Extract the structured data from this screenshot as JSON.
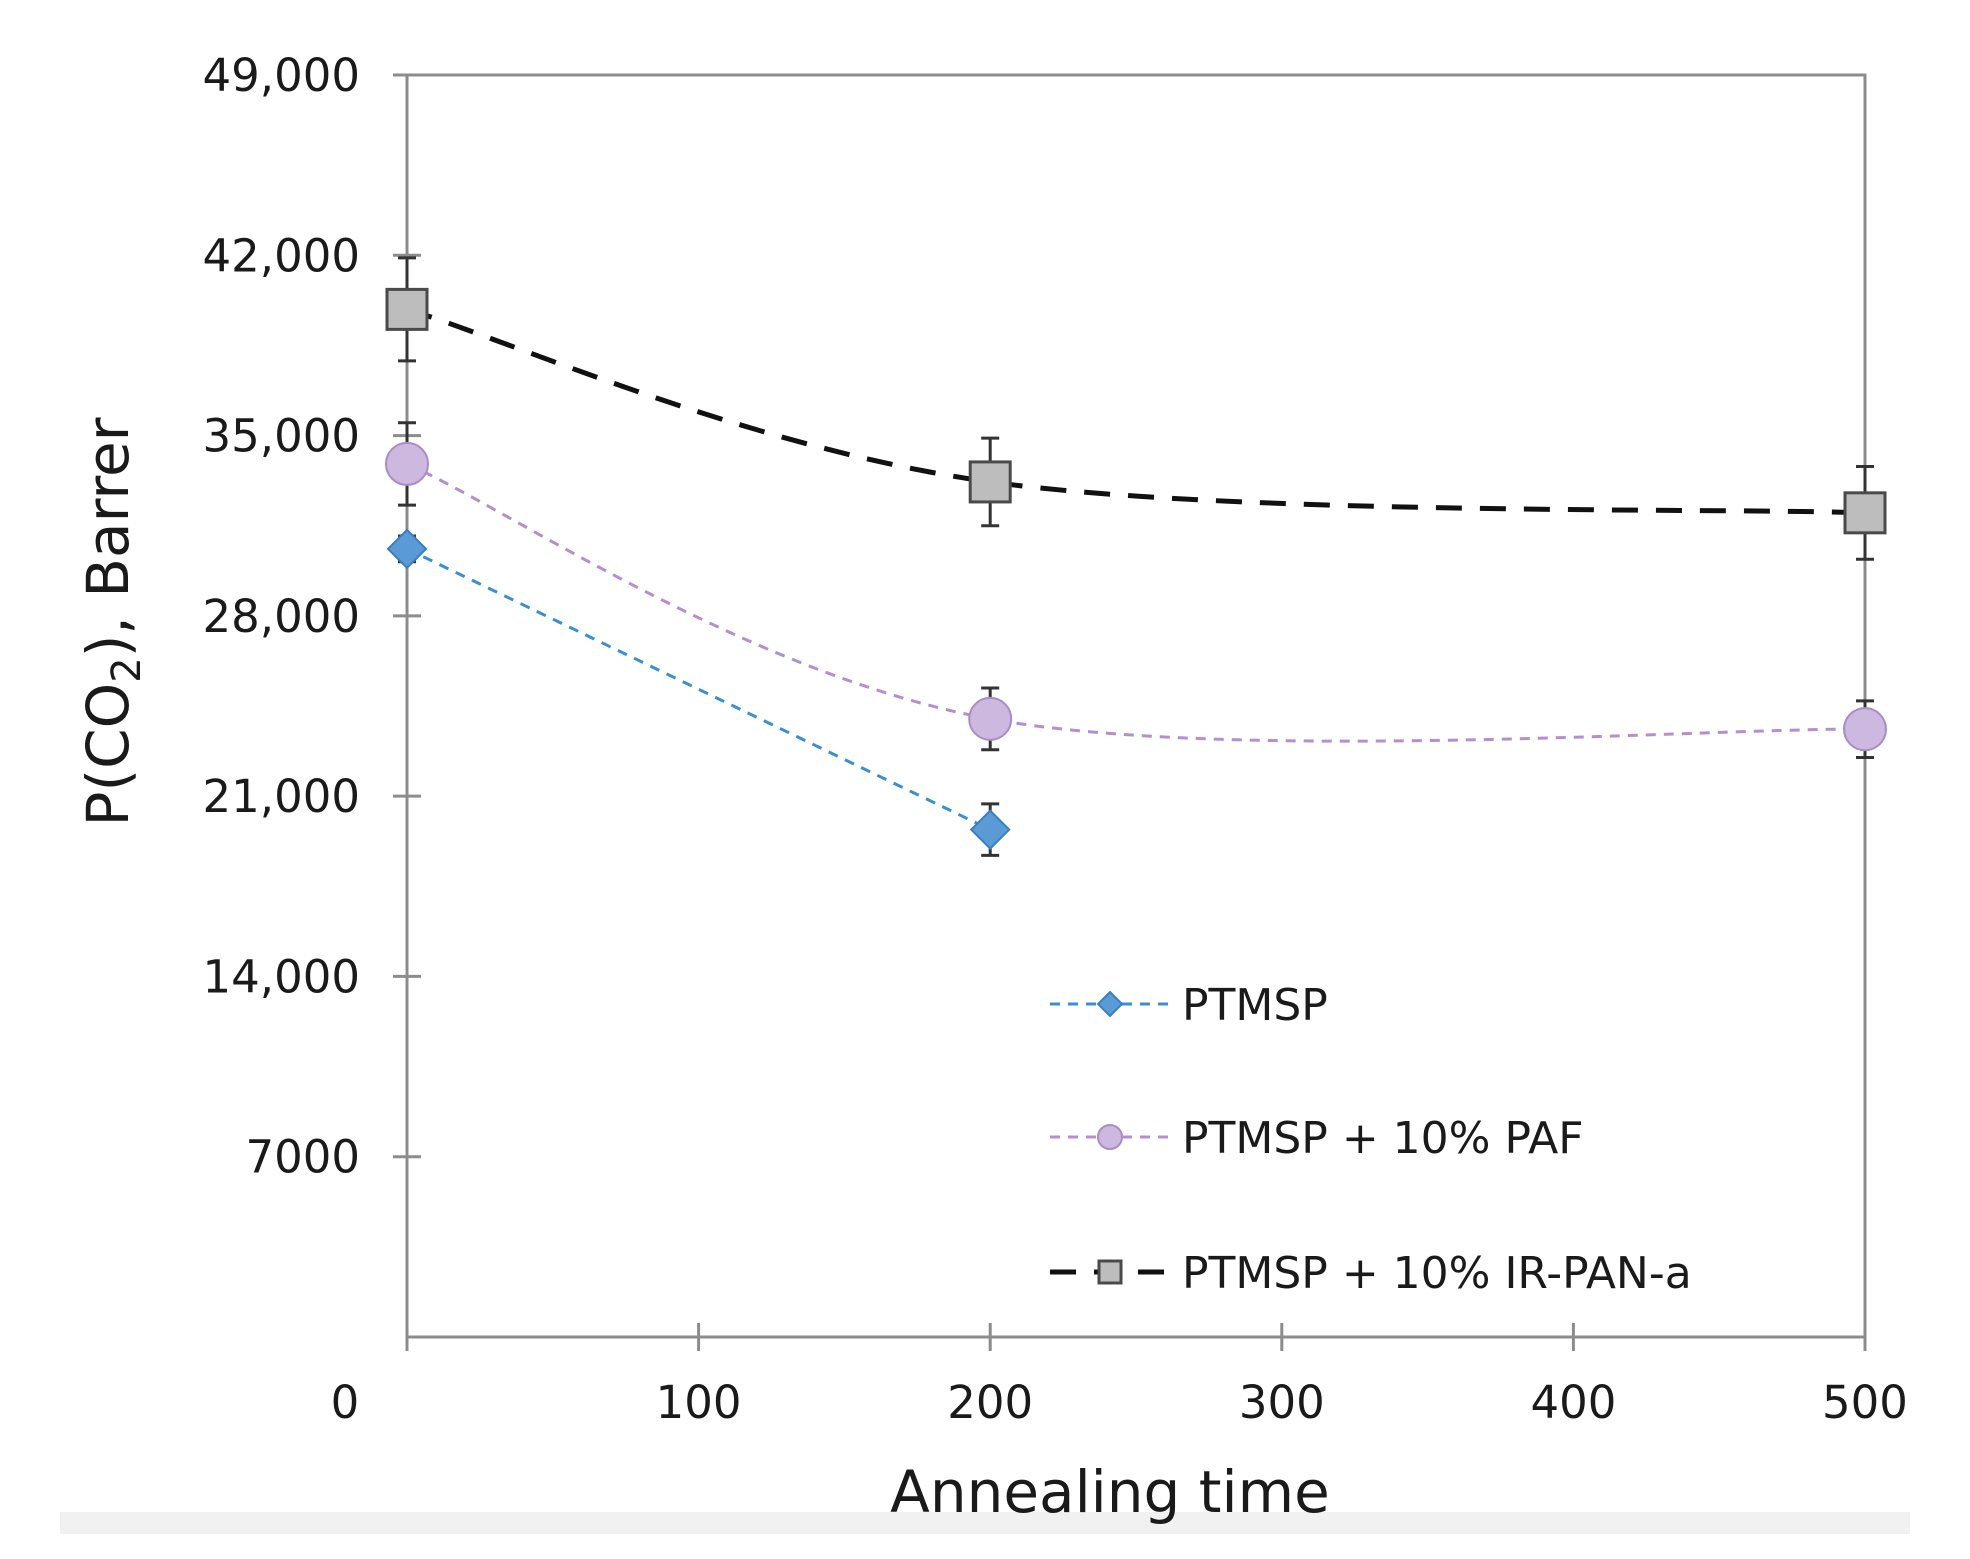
{
  "chart_data": {
    "type": "line",
    "title": "",
    "xlabel": "Annealing time",
    "ylabel_main": "P(CO",
    "ylabel_sub": "2",
    "ylabel_tail": "), Barrer",
    "xlim": [
      0,
      500
    ],
    "ylim": [
      0,
      49000
    ],
    "x_ticks": [
      0,
      100,
      200,
      300,
      400,
      500
    ],
    "x_tick_labels": [
      "0",
      "100",
      "200",
      "300",
      "400",
      "500"
    ],
    "y_ticks": [
      7000,
      14000,
      21000,
      28000,
      35000,
      42000,
      49000
    ],
    "y_tick_labels": [
      "7000",
      "14,000",
      "21,000",
      "28,000",
      "35,000",
      "42,000",
      "49,000"
    ],
    "grid": false,
    "legend_position": "bottom-right",
    "series": [
      {
        "name": "PTMSP",
        "marker": "diamond",
        "color": "#5b9bd5",
        "line_color": "#3a8fd0",
        "x": [
          0,
          200
        ],
        "y": [
          30600,
          19700
        ],
        "err": [
          500,
          1000
        ]
      },
      {
        "name": "PTMSP +  10% PAF",
        "marker": "circle",
        "color": "#cdb8df",
        "line_color": "#b38fd0",
        "x": [
          0,
          200,
          500
        ],
        "y": [
          33900,
          24000,
          23600
        ],
        "err": [
          1600,
          1200,
          1100
        ]
      },
      {
        "name": "PTMSP + 10% IR-PAN-a",
        "marker": "square",
        "color": "#bdbdbd",
        "line_color": "#111111",
        "x": [
          0,
          200,
          500
        ],
        "y": [
          39900,
          33200,
          32000
        ],
        "err": [
          2000,
          1700,
          1800
        ]
      }
    ]
  }
}
